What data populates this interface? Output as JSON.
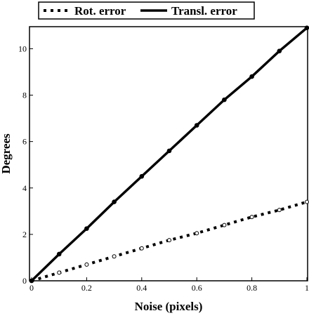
{
  "chart_data": {
    "type": "line",
    "x_label": "Noise (pixels)",
    "y_label": "Degrees",
    "x": [
      0,
      0.1,
      0.2,
      0.3,
      0.4,
      0.5,
      0.6,
      0.7,
      0.8,
      0.9,
      1
    ],
    "series": [
      {
        "name": "Rot. error",
        "color": "#000000",
        "style": "dotted",
        "values": [
          0,
          0.35,
          0.7,
          1.05,
          1.4,
          1.75,
          2.05,
          2.4,
          2.75,
          3.05,
          3.4
        ]
      },
      {
        "name": "Transl. error",
        "color": "#000000",
        "style": "solid",
        "values": [
          0,
          1.15,
          2.25,
          3.4,
          4.5,
          5.6,
          6.7,
          7.8,
          8.8,
          9.9,
          10.9
        ]
      }
    ],
    "xlim": [
      0,
      1
    ],
    "xticks": [
      0,
      0.2,
      0.4,
      0.6,
      0.8,
      1
    ],
    "ylim": [
      0,
      10.95
    ],
    "yticks": [
      0,
      2,
      4,
      6,
      8,
      10
    ],
    "legend": "top"
  }
}
